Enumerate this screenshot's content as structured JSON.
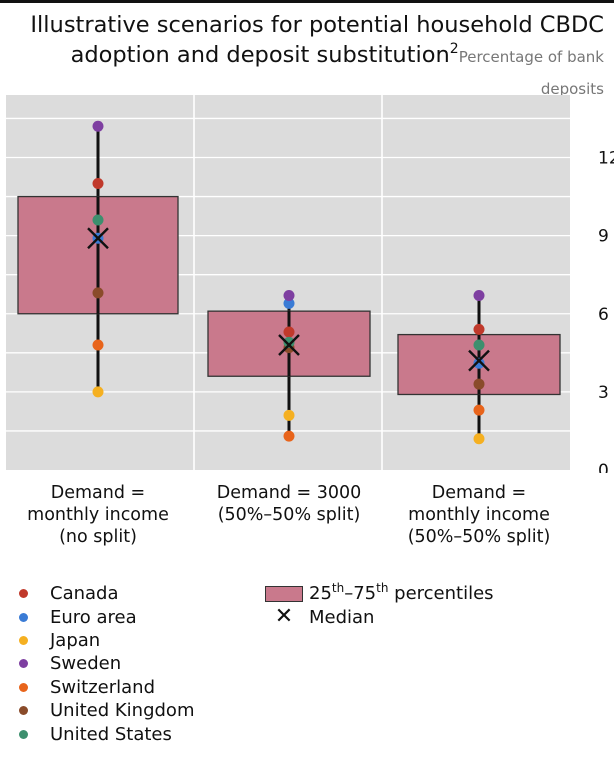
{
  "chart_data": {
    "type": "box",
    "title": "Illustrative scenarios for potential household CBDC adoption and deposit substitution",
    "title_footnote": "2",
    "subtitle": "Percentage of bank deposits",
    "ylim": [
      0,
      14.4
    ],
    "yticks": [
      "0",
      "3",
      "6",
      "9",
      "12"
    ],
    "ytick_values": [
      0,
      3,
      6,
      9,
      12
    ],
    "grid": true,
    "categories": [
      [
        "Demand =",
        "monthly income",
        "(no split)"
      ],
      [
        "Demand = 3000",
        "(50%–50% split)"
      ],
      [
        "Demand =",
        "monthly income",
        "(50%–50% split)"
      ]
    ],
    "boxes": [
      {
        "q1": 6.0,
        "q3": 10.5,
        "median": 8.9,
        "min": 3.0,
        "max": 13.2
      },
      {
        "q1": 3.6,
        "q3": 6.1,
        "median": 4.8,
        "min": 1.3,
        "max": 6.7
      },
      {
        "q1": 2.9,
        "q3": 5.2,
        "median": 4.2,
        "min": 1.2,
        "max": 6.7
      }
    ],
    "series": [
      {
        "name": "Canada",
        "color": "#c0392b",
        "values": [
          11.0,
          5.3,
          5.4
        ]
      },
      {
        "name": "Euro area",
        "color": "#3a7bd5",
        "values": [
          8.9,
          6.4,
          4.1
        ]
      },
      {
        "name": "Japan",
        "color": "#f5b021",
        "values": [
          3.0,
          2.1,
          1.2
        ]
      },
      {
        "name": "Sweden",
        "color": "#7e3fa1",
        "values": [
          13.2,
          6.7,
          6.7
        ]
      },
      {
        "name": "Switzerland",
        "color": "#e8641b",
        "values": [
          4.8,
          1.3,
          2.3
        ]
      },
      {
        "name": "United Kingdom",
        "color": "#8a4b2a",
        "values": [
          6.8,
          4.7,
          3.3
        ]
      },
      {
        "name": "United States",
        "color": "#3d8f6e",
        "values": [
          9.6,
          4.9,
          4.8
        ]
      }
    ],
    "legend": {
      "box_label_start": "25",
      "box_label_sup1": "th",
      "box_label_mid": "–75",
      "box_label_sup2": "th",
      "box_label_end": " percentiles",
      "median_label": "Median",
      "median_glyph": "✕"
    },
    "colors": {
      "plot_bg": "#dcdcdc",
      "box_fill": "#c9798c",
      "box_edge": "#333333"
    }
  }
}
